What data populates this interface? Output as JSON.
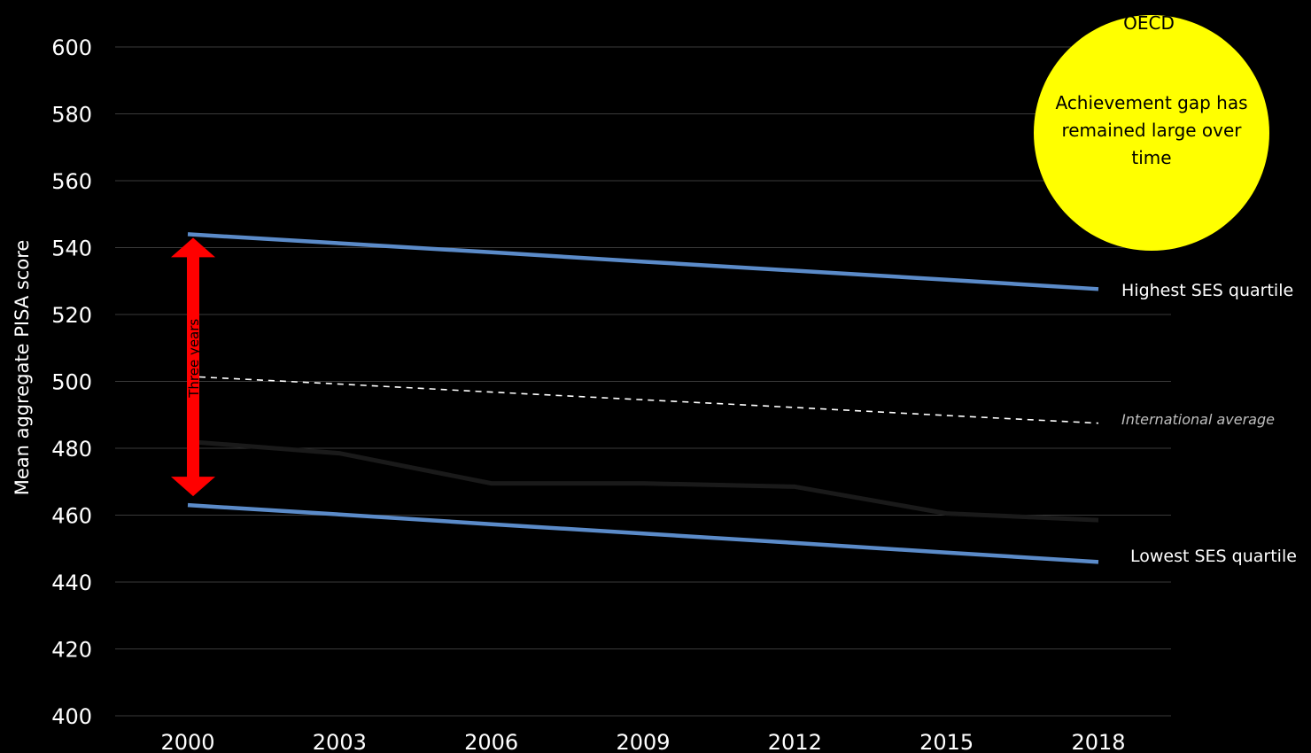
{
  "chart_data": {
    "type": "line",
    "x": [
      "2000",
      "2003",
      "2006",
      "2009",
      "2012",
      "2015",
      "2018"
    ],
    "ylabel": "Mean aggregate PISA score",
    "ylim": [
      400,
      600
    ],
    "yticks": [
      400,
      420,
      440,
      460,
      480,
      500,
      520,
      540,
      560,
      580,
      600
    ],
    "grid": true,
    "series": [
      {
        "name": "Highest SES quartile",
        "values": [
          544,
          541.3,
          538.6,
          535.8,
          533.1,
          530.4,
          527.6
        ],
        "color": "#5b8bc9",
        "style": "solid"
      },
      {
        "name": "International average",
        "values": [
          501.5,
          499.2,
          496.8,
          494.5,
          492.2,
          489.8,
          487.5
        ],
        "color": "#ffffff",
        "style": "dashed"
      },
      {
        "values": [
          482,
          478.5,
          469.5,
          469.5,
          468.5,
          460.5,
          458.5
        ],
        "color": "#1a1a1a",
        "style": "solid"
      },
      {
        "name": "Lowest SES quartile",
        "values": [
          463,
          460.2,
          457.3,
          454.5,
          451.7,
          448.8,
          446
        ],
        "color": "#5b8bc9",
        "style": "solid"
      }
    ],
    "annotations": {
      "gap_arrow": {
        "label": "Three years",
        "from": 544,
        "to": 463,
        "x": "2000",
        "color": "#ff0000"
      },
      "bubble": {
        "title": "OECD",
        "text_lines": [
          "Achievement gap has",
          "remained large over",
          "time"
        ],
        "color": "#ffff00"
      }
    }
  }
}
